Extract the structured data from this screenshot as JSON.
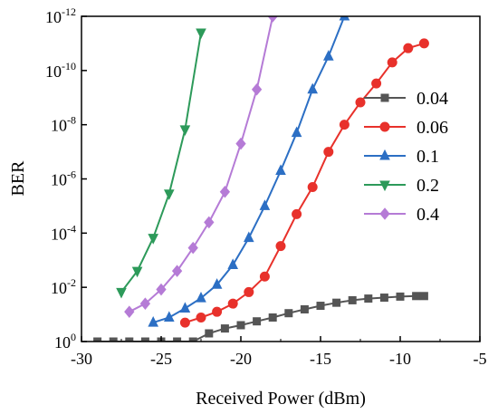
{
  "chart_data": {
    "type": "line",
    "xlabel": "Received Power (dBm)",
    "ylabel": "BER",
    "xlim": [
      -30,
      -5
    ],
    "xticks": [
      -30,
      -25,
      -20,
      -15,
      -10,
      -5
    ],
    "ylog": true,
    "ylim_exp": [
      -12,
      0
    ],
    "yticks_exp": [
      0,
      -2,
      -4,
      -6,
      -8,
      -10,
      -12
    ],
    "grid": false,
    "legend_position": "right",
    "series": [
      {
        "name": "0.04",
        "color": "#555555",
        "marker": "square",
        "x": [
          -29,
          -28,
          -27,
          -26,
          -25,
          -24,
          -23,
          -22,
          -21,
          -20,
          -19,
          -18,
          -17,
          -16,
          -15,
          -14,
          -13,
          -12,
          -11,
          -10,
          -9,
          -8.5
        ],
        "y": [
          1.0,
          1.0,
          1.0,
          1.0,
          1.0,
          1.0,
          1.0,
          0.5,
          0.33,
          0.25,
          0.18,
          0.13,
          0.09,
          0.065,
          0.048,
          0.037,
          0.03,
          0.026,
          0.024,
          0.022,
          0.021,
          0.021
        ]
      },
      {
        "name": "0.06",
        "color": "#e8312b",
        "marker": "circle",
        "x": [
          -23.5,
          -22.5,
          -21.5,
          -20.5,
          -19.5,
          -18.5,
          -17.5,
          -16.5,
          -15.5,
          -14.5,
          -13.5,
          -12.5,
          -11.5,
          -10.5,
          -9.5,
          -8.5
        ],
        "y": [
          0.2,
          0.13,
          0.08,
          0.04,
          0.015,
          0.004,
          0.0003,
          2e-05,
          2e-06,
          1e-07,
          1e-08,
          1.5e-09,
          3e-10,
          5e-11,
          1.5e-11,
          1e-11
        ]
      },
      {
        "name": "0.1",
        "color": "#2c6fc4",
        "marker": "triangle-up",
        "x": [
          -25.5,
          -24.5,
          -23.5,
          -22.5,
          -21.5,
          -20.5,
          -19.5,
          -18.5,
          -17.5,
          -16.5,
          -15.5,
          -14.5,
          -13.5
        ],
        "y": [
          0.2,
          0.13,
          0.06,
          0.025,
          0.008,
          0.0015,
          0.00015,
          1e-05,
          5e-07,
          2e-08,
          5e-10,
          3e-11,
          1e-12
        ]
      },
      {
        "name": "0.2",
        "color": "#2d9a5a",
        "marker": "triangle-down",
        "x": [
          -27.5,
          -26.5,
          -25.5,
          -24.5,
          -23.5,
          -22.5
        ],
        "y": [
          0.015,
          0.0025,
          0.00015,
          3.5e-06,
          1.5e-08,
          4e-12
        ]
      },
      {
        "name": "0.4",
        "color": "#b57bd6",
        "marker": "diamond",
        "x": [
          -27,
          -26,
          -25,
          -24,
          -23,
          -22,
          -21,
          -20,
          -19,
          -18
        ],
        "y": [
          0.08,
          0.04,
          0.012,
          0.0025,
          0.00035,
          4e-05,
          3e-06,
          5e-08,
          5e-10,
          1e-12
        ]
      }
    ]
  },
  "y_tick_base": "10"
}
